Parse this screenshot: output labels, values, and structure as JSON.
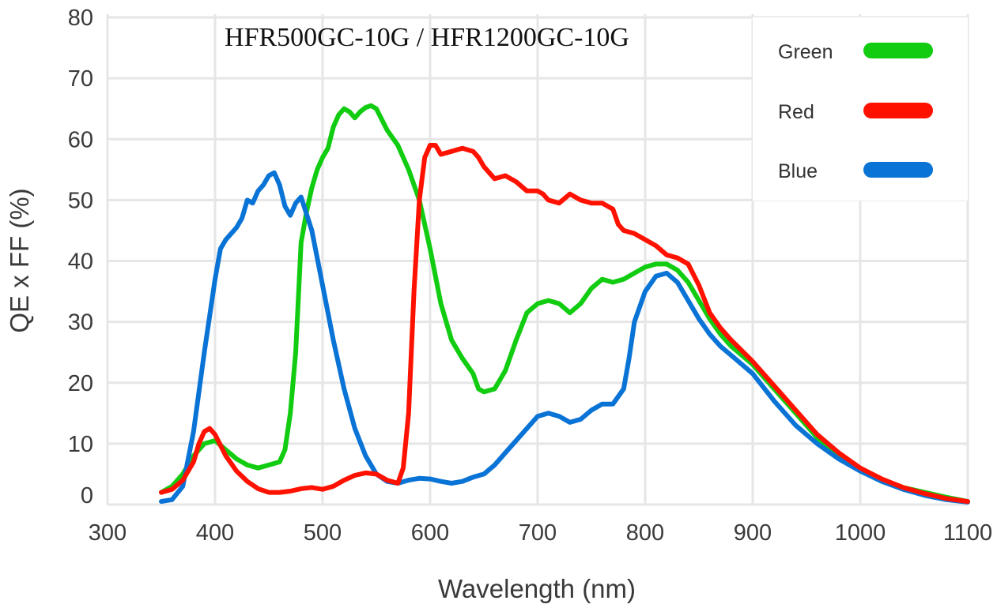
{
  "chart_data": {
    "type": "line",
    "title": "HFR500GC-10G / HFR1200GC-10G",
    "xlabel": "Wavelength (nm)",
    "ylabel": "QE x FF (%)",
    "xlim": [
      300,
      1100
    ],
    "ylim": [
      0,
      80
    ],
    "xticks": [
      300,
      400,
      500,
      600,
      700,
      800,
      900,
      1000,
      1100
    ],
    "yticks": [
      0,
      10,
      20,
      30,
      40,
      50,
      60,
      70,
      80
    ],
    "grid": true,
    "legend_position": "top-right",
    "series": [
      {
        "name": "Green",
        "color": "#11cc11",
        "x": [
          350,
          360,
          370,
          380,
          390,
          400,
          410,
          420,
          430,
          440,
          450,
          460,
          465,
          470,
          475,
          480,
          485,
          490,
          495,
          500,
          505,
          510,
          515,
          520,
          525,
          530,
          535,
          540,
          545,
          550,
          560,
          570,
          580,
          590,
          600,
          610,
          620,
          630,
          640,
          645,
          650,
          660,
          670,
          680,
          690,
          700,
          710,
          720,
          730,
          740,
          750,
          760,
          770,
          780,
          790,
          800,
          810,
          820,
          830,
          840,
          850,
          860,
          870,
          880,
          890,
          900,
          920,
          940,
          960,
          980,
          1000,
          1020,
          1040,
          1060,
          1080,
          1100
        ],
        "values": [
          2.0,
          3.0,
          5.0,
          8.0,
          10.0,
          10.5,
          9.0,
          7.5,
          6.5,
          6.0,
          6.5,
          7.0,
          9.0,
          15.0,
          25.0,
          43.0,
          48.0,
          52.0,
          55.0,
          57.0,
          58.5,
          62.0,
          64.0,
          65.0,
          64.5,
          63.5,
          64.5,
          65.2,
          65.5,
          65.0,
          61.5,
          59.0,
          55.0,
          50.0,
          42.0,
          33.0,
          27.0,
          24.0,
          21.5,
          19.0,
          18.5,
          19.0,
          22.0,
          27.0,
          31.5,
          33.0,
          33.5,
          33.0,
          31.5,
          33.0,
          35.5,
          37.0,
          36.5,
          37.0,
          38.0,
          39.0,
          39.5,
          39.5,
          38.5,
          36.5,
          33.5,
          30.5,
          28.0,
          26.0,
          24.5,
          23.0,
          19.0,
          15.0,
          11.0,
          8.0,
          5.5,
          4.0,
          2.8,
          2.0,
          1.2,
          0.5
        ]
      },
      {
        "name": "Red",
        "color": "#ff1100",
        "x": [
          350,
          360,
          370,
          380,
          385,
          390,
          395,
          400,
          410,
          420,
          430,
          440,
          450,
          460,
          470,
          480,
          490,
          500,
          510,
          520,
          530,
          540,
          550,
          560,
          570,
          575,
          580,
          585,
          590,
          595,
          600,
          605,
          610,
          620,
          630,
          640,
          645,
          650,
          660,
          670,
          680,
          690,
          700,
          705,
          710,
          720,
          730,
          740,
          750,
          760,
          770,
          775,
          780,
          790,
          800,
          810,
          820,
          830,
          840,
          850,
          860,
          870,
          880,
          900,
          920,
          940,
          960,
          980,
          1000,
          1020,
          1040,
          1060,
          1080,
          1100
        ],
        "values": [
          2.0,
          2.5,
          4.0,
          7.0,
          10.0,
          12.0,
          12.5,
          11.5,
          8.0,
          5.5,
          3.8,
          2.6,
          2.0,
          2.0,
          2.2,
          2.6,
          2.8,
          2.5,
          3.0,
          4.0,
          4.8,
          5.2,
          5.0,
          4.0,
          3.5,
          6.0,
          15.0,
          35.0,
          50.0,
          57.0,
          59.0,
          59.0,
          57.5,
          58.0,
          58.5,
          58.0,
          57.0,
          55.5,
          53.5,
          54.0,
          53.0,
          51.5,
          51.5,
          51.0,
          50.0,
          49.5,
          51.0,
          50.0,
          49.5,
          49.5,
          48.5,
          46.0,
          45.0,
          44.5,
          43.5,
          42.5,
          41.0,
          40.5,
          39.5,
          36.0,
          31.5,
          29.0,
          27.0,
          23.5,
          19.5,
          15.5,
          11.5,
          8.5,
          6.0,
          4.2,
          2.8,
          1.8,
          1.0,
          0.5
        ]
      },
      {
        "name": "Blue",
        "color": "#0a73d6",
        "x": [
          350,
          360,
          370,
          380,
          390,
          400,
          405,
          410,
          420,
          425,
          430,
          435,
          440,
          445,
          450,
          455,
          460,
          465,
          470,
          475,
          480,
          490,
          500,
          510,
          520,
          530,
          540,
          550,
          560,
          570,
          580,
          590,
          600,
          610,
          620,
          630,
          640,
          650,
          660,
          670,
          680,
          690,
          700,
          710,
          720,
          730,
          740,
          750,
          760,
          770,
          780,
          785,
          790,
          800,
          810,
          820,
          830,
          840,
          850,
          860,
          870,
          880,
          900,
          920,
          940,
          960,
          980,
          1000,
          1020,
          1040,
          1060,
          1080,
          1100
        ],
        "values": [
          0.5,
          0.8,
          3.0,
          12.0,
          25.0,
          37.0,
          42.0,
          43.5,
          45.5,
          47.0,
          50.0,
          49.5,
          51.5,
          52.5,
          54.0,
          54.5,
          52.5,
          49.0,
          47.5,
          49.5,
          50.5,
          45.0,
          36.0,
          27.0,
          19.0,
          12.5,
          8.0,
          5.0,
          3.8,
          3.5,
          4.0,
          4.3,
          4.2,
          3.8,
          3.5,
          3.8,
          4.5,
          5.0,
          6.5,
          8.5,
          10.5,
          12.5,
          14.5,
          15.0,
          14.5,
          13.5,
          14.0,
          15.5,
          16.5,
          16.5,
          19.0,
          24.0,
          30.0,
          35.0,
          37.5,
          38.0,
          36.5,
          33.5,
          30.5,
          28.0,
          26.0,
          24.5,
          21.5,
          17.0,
          13.0,
          10.0,
          7.5,
          5.5,
          3.8,
          2.5,
          1.5,
          0.8,
          0.4
        ]
      }
    ]
  }
}
